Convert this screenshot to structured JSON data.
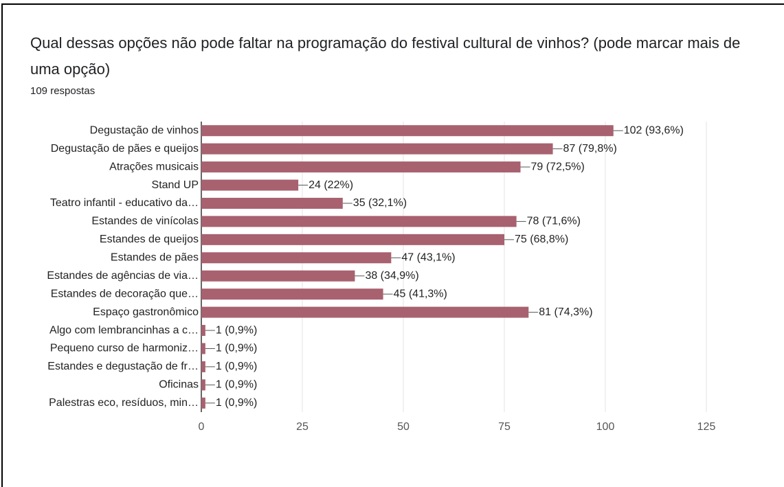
{
  "chart_data": {
    "type": "bar",
    "title": "Qual dessas opções não pode faltar na programação do festival cultural de vinhos? (pode marcar mais de uma opção)",
    "subtitle": "109 respostas",
    "categories": [
      "Degustação de vinhos",
      "Degustação de pães e queijos",
      "Atrações musicais",
      "Stand UP",
      "Teatro infantil - educativo da…",
      "Estandes de vinícolas",
      "Estandes de queijos",
      "Estandes de pães",
      "Estandes de agências de via…",
      "Estandes de decoração que…",
      "Espaço gastronômico",
      "Algo com lembrancinhas a c…",
      "Pequeno curso de harmoniz…",
      "Estandes e degustação de fr…",
      "Oficinas",
      "Palestras eco, resíduos, min…"
    ],
    "values": [
      102,
      87,
      79,
      24,
      35,
      78,
      75,
      47,
      38,
      45,
      81,
      1,
      1,
      1,
      1,
      1
    ],
    "value_labels": [
      "102 (93,6%)",
      "87 (79,8%)",
      "79 (72,5%)",
      "24 (22%)",
      "35 (32,1%)",
      "78 (71,6%)",
      "75 (68,8%)",
      "47 (43,1%)",
      "38 (34,9%)",
      "45 (41,3%)",
      "81 (74,3%)",
      "1 (0,9%)",
      "1 (0,9%)",
      "1 (0,9%)",
      "1 (0,9%)",
      "1 (0,9%)"
    ],
    "color": "#a8616f",
    "orientation": "horizontal",
    "xlim": [
      0,
      125
    ],
    "xticks": [
      0,
      25,
      50,
      75,
      100,
      125
    ],
    "grid": true
  }
}
